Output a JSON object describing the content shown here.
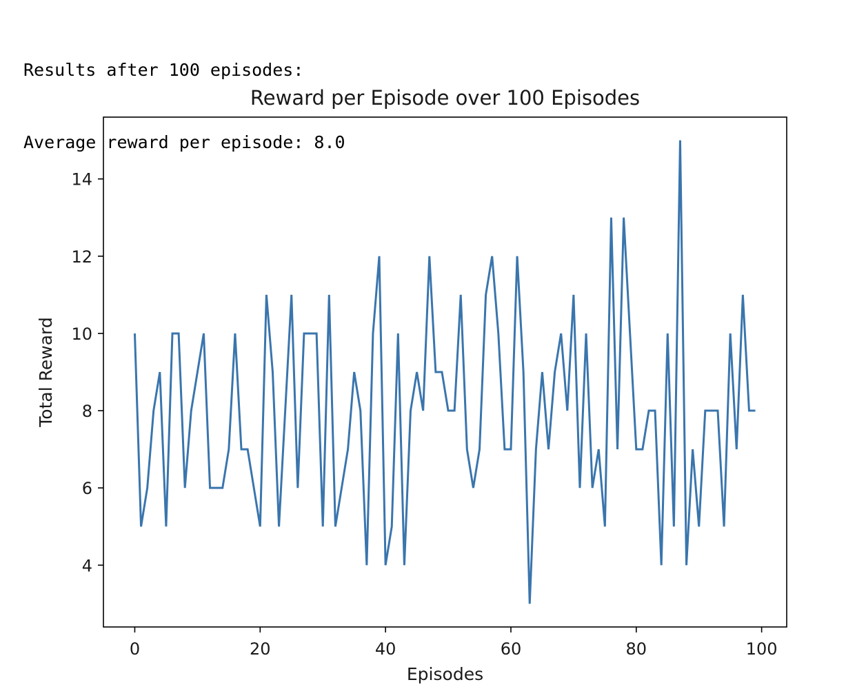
{
  "console": {
    "line1": "Results after 100 episodes:",
    "line2": "Average reward per episode: 8.0"
  },
  "chart_data": {
    "type": "line",
    "title": "Reward per Episode over 100 Episodes",
    "xlabel": "Episodes",
    "ylabel": "Total Reward",
    "xlim": [
      -5,
      104
    ],
    "ylim": [
      2.4,
      15.6
    ],
    "xticks": [
      0,
      20,
      40,
      60,
      80,
      100
    ],
    "yticks": [
      4,
      6,
      8,
      10,
      12,
      14
    ],
    "grid": false,
    "series": [
      {
        "name": "Total Reward",
        "color": "#3a75ad",
        "x": [
          0,
          1,
          2,
          3,
          4,
          5,
          6,
          7,
          8,
          9,
          10,
          11,
          12,
          13,
          14,
          15,
          16,
          17,
          18,
          19,
          20,
          21,
          22,
          23,
          24,
          25,
          26,
          27,
          28,
          29,
          30,
          31,
          32,
          33,
          34,
          35,
          36,
          37,
          38,
          39,
          40,
          41,
          42,
          43,
          44,
          45,
          46,
          47,
          48,
          49,
          50,
          51,
          52,
          53,
          54,
          55,
          56,
          57,
          58,
          59,
          60,
          61,
          62,
          63,
          64,
          65,
          66,
          67,
          68,
          69,
          70,
          71,
          72,
          73,
          74,
          75,
          76,
          77,
          78,
          79,
          80,
          81,
          82,
          83,
          84,
          85,
          86,
          87,
          88,
          89,
          90,
          91,
          92,
          93,
          94,
          95,
          96,
          97,
          98,
          99
        ],
        "values": [
          10,
          5,
          6,
          8,
          9,
          5,
          10,
          10,
          6,
          8,
          9,
          10,
          6,
          6,
          6,
          7,
          10,
          7,
          7,
          6,
          5,
          11,
          9,
          5,
          8,
          11,
          6,
          10,
          10,
          10,
          5,
          11,
          5,
          6,
          7,
          9,
          8,
          4,
          10,
          12,
          4,
          5,
          10,
          4,
          8,
          9,
          8,
          12,
          9,
          9,
          8,
          8,
          11,
          7,
          6,
          7,
          11,
          12,
          10,
          7,
          7,
          12,
          9,
          3,
          7,
          9,
          7,
          9,
          10,
          8,
          11,
          6,
          10,
          6,
          7,
          5,
          13,
          7,
          13,
          10,
          7,
          7,
          8,
          8,
          4,
          10,
          5,
          15,
          4,
          7,
          5,
          8,
          8,
          8,
          5,
          10,
          7,
          11,
          8,
          8
        ]
      }
    ]
  }
}
